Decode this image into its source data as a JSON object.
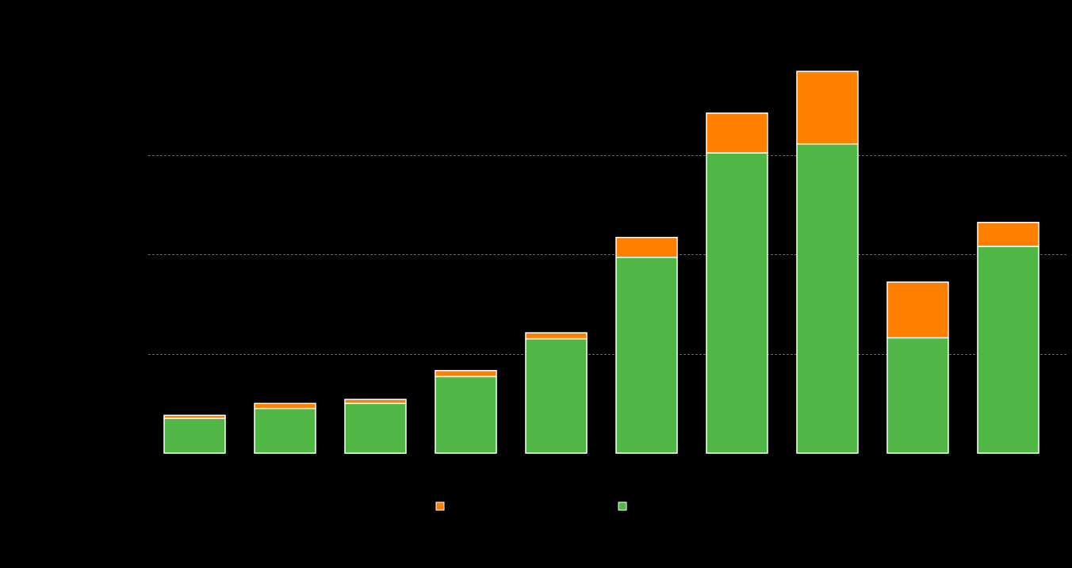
{
  "chart_data": {
    "type": "bar",
    "stacked": true,
    "categories": [
      "",
      "",
      "",
      "",
      "",
      "",
      "",
      "",
      "",
      ""
    ],
    "series": [
      {
        "color": "#50b747",
        "values": [
          3.5,
          4.5,
          5.0,
          7.7,
          11.5,
          19.7,
          30.2,
          31.1,
          11.6,
          20.8
        ]
      },
      {
        "color": "#ff7f00",
        "values": [
          0.3,
          0.5,
          0.4,
          0.6,
          0.6,
          2.0,
          4.0,
          7.3,
          5.6,
          2.4
        ]
      }
    ],
    "ylim": [
      0,
      40
    ],
    "yticks": [
      0,
      10,
      20,
      30,
      40
    ],
    "grid": true,
    "legend_position": "bottom-center",
    "legend_order": [
      1,
      0
    ],
    "background": "#000000",
    "bar_outline_color": "#ffffff"
  }
}
